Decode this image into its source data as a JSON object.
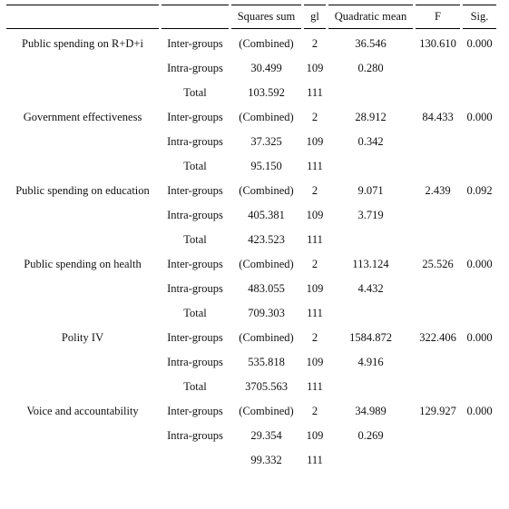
{
  "headers": [
    "",
    "",
    "Squares sum",
    "gl",
    "Quadratic mean",
    "F",
    "Sig."
  ],
  "rows": [
    {
      "variable": "Public spending on R+D+i",
      "source": "Inter-groups",
      "ss": "(Combined)",
      "gl": "2",
      "qm": "36.546",
      "f": "130.610",
      "sig": "0.000"
    },
    {
      "variable": "",
      "source": "Intra-groups",
      "ss": "30.499",
      "gl": "109",
      "qm": "0.280",
      "f": "",
      "sig": ""
    },
    {
      "variable": "",
      "source": "Total",
      "ss": "103.592",
      "gl": "111",
      "qm": "",
      "f": "",
      "sig": ""
    },
    {
      "variable": "Government effectiveness",
      "source": "Inter-groups",
      "ss": "(Combined)",
      "gl": "2",
      "qm": "28.912",
      "f": "84.433",
      "sig": "0.000"
    },
    {
      "variable": "",
      "source": "Intra-groups",
      "ss": "37.325",
      "gl": "109",
      "qm": "0.342",
      "f": "",
      "sig": ""
    },
    {
      "variable": "",
      "source": "Total",
      "ss": "95.150",
      "gl": "111",
      "qm": "",
      "f": "",
      "sig": ""
    },
    {
      "variable": "Public spending on education",
      "source": "Inter-groups",
      "ss": "(Combined)",
      "gl": "2",
      "qm": "9.071",
      "f": "2.439",
      "sig": "0.092"
    },
    {
      "variable": "",
      "source": "Intra-groups",
      "ss": "405.381",
      "gl": "109",
      "qm": "3.719",
      "f": "",
      "sig": ""
    },
    {
      "variable": "",
      "source": "Total",
      "ss": "423.523",
      "gl": "111",
      "qm": "",
      "f": "",
      "sig": ""
    },
    {
      "variable": "Public spending on health",
      "source": "Inter-groups",
      "ss": "(Combined)",
      "gl": "2",
      "qm": "113.124",
      "f": "25.526",
      "sig": "0.000"
    },
    {
      "variable": "",
      "source": "Intra-groups",
      "ss": "483.055",
      "gl": "109",
      "qm": "4.432",
      "f": "",
      "sig": ""
    },
    {
      "variable": "",
      "source": "Total",
      "ss": "709.303",
      "gl": "111",
      "qm": "",
      "f": "",
      "sig": ""
    },
    {
      "variable": "Polity IV",
      "source": "Inter-groups",
      "ss": "(Combined)",
      "gl": "2",
      "qm": "1584.872",
      "f": "322.406",
      "sig": "0.000"
    },
    {
      "variable": "",
      "source": "Intra-groups",
      "ss": "535.818",
      "gl": "109",
      "qm": "4.916",
      "f": "",
      "sig": ""
    },
    {
      "variable": "",
      "source": "Total",
      "ss": "3705.563",
      "gl": "111",
      "qm": "",
      "f": "",
      "sig": ""
    },
    {
      "variable": "Voice and accountability",
      "source": "Inter-groups",
      "ss": "(Combined)",
      "gl": "2",
      "qm": "34.989",
      "f": "129.927",
      "sig": "0.000"
    },
    {
      "variable": "",
      "source": "Intra-groups",
      "ss": "29.354",
      "gl": "109",
      "qm": "0.269",
      "f": "",
      "sig": ""
    },
    {
      "variable": "",
      "source": "",
      "ss": "99.332",
      "gl": "111",
      "qm": "",
      "f": "",
      "sig": ""
    }
  ]
}
